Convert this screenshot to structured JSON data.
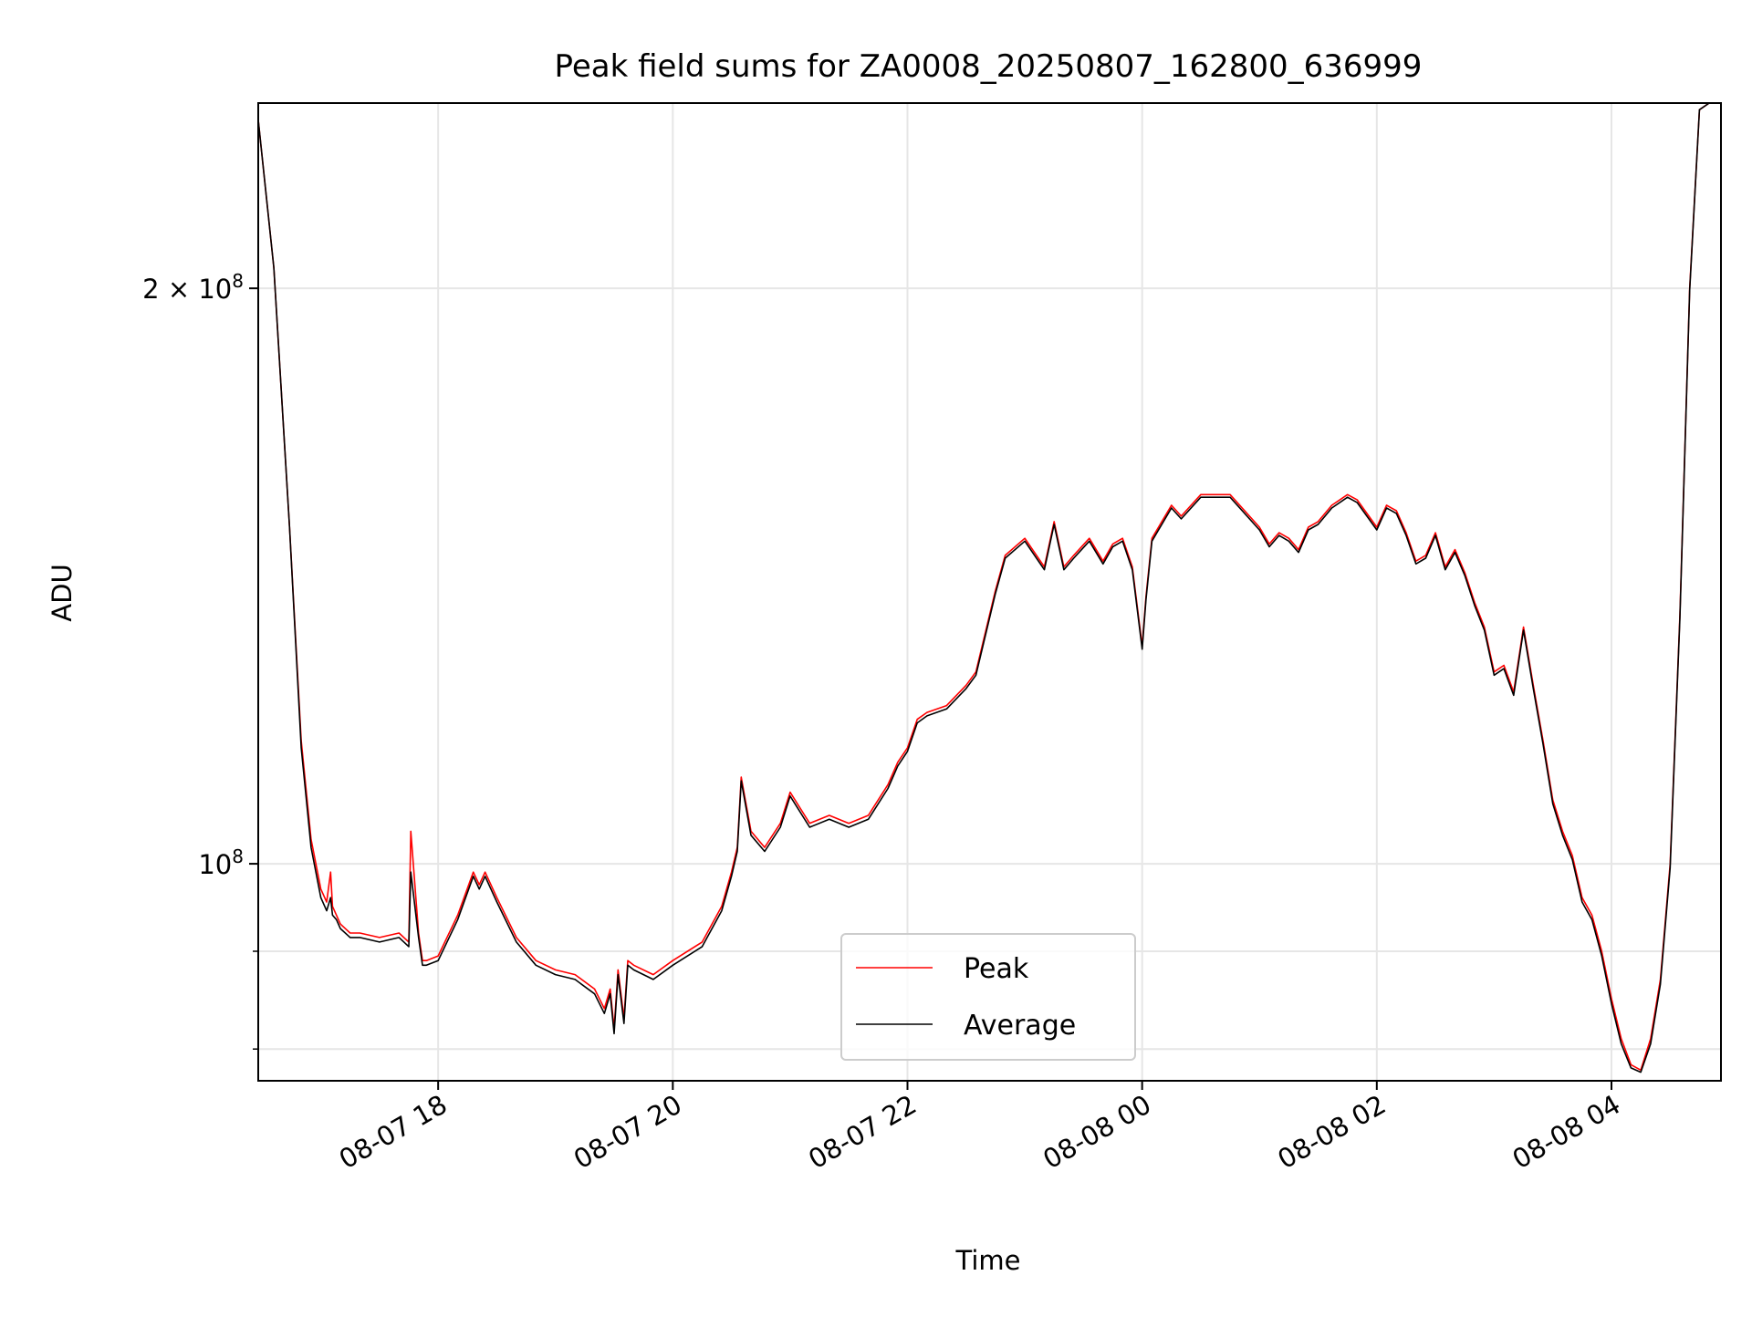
{
  "chart_data": {
    "type": "line",
    "title": "Peak field sums for ZA0008_20250807_162800_636999",
    "xlabel": "Time",
    "ylabel": "ADU",
    "x_unit": "datetime",
    "xlim": [
      "2025-08-07 16:28",
      "2025-08-08 04:56"
    ],
    "ylim": [
      77000000,
      250000000
    ],
    "yscale": "log",
    "grid": true,
    "legend": {
      "placement": "lower center"
    },
    "x_ticks": [
      {
        "value": "2025-08-07 18:00",
        "label": "08-07 18"
      },
      {
        "value": "2025-08-07 20:00",
        "label": "08-07 20"
      },
      {
        "value": "2025-08-07 22:00",
        "label": "08-07 22"
      },
      {
        "value": "2025-08-08 00:00",
        "label": "08-08 00"
      },
      {
        "value": "2025-08-08 02:00",
        "label": "08-08 02"
      },
      {
        "value": "2025-08-08 04:00",
        "label": "08-08 04"
      }
    ],
    "y_ticks": [
      {
        "value": 100000000,
        "label_base": "10",
        "label_exp": "8",
        "label_coef": ""
      },
      {
        "value": 200000000,
        "label_base": "10",
        "label_exp": "8",
        "label_coef": "2 × "
      }
    ],
    "y_minor_ticks": [
      80000000,
      90000000
    ],
    "series": [
      {
        "name": "Peak",
        "color": "#ff0000",
        "x": [
          "2025-08-07 16:28",
          "2025-08-07 16:36",
          "2025-08-07 16:44",
          "2025-08-07 16:50",
          "2025-08-07 16:55",
          "2025-08-07 17:00",
          "2025-08-07 17:03",
          "2025-08-07 17:05",
          "2025-08-07 17:06",
          "2025-08-07 17:08",
          "2025-08-07 17:10",
          "2025-08-07 17:15",
          "2025-08-07 17:20",
          "2025-08-07 17:30",
          "2025-08-07 17:40",
          "2025-08-07 17:45",
          "2025-08-07 17:46",
          "2025-08-07 17:50",
          "2025-08-07 17:52",
          "2025-08-07 17:54",
          "2025-08-07 18:00",
          "2025-08-07 18:10",
          "2025-08-07 18:18",
          "2025-08-07 18:21",
          "2025-08-07 18:24",
          "2025-08-07 18:30",
          "2025-08-07 18:40",
          "2025-08-07 18:50",
          "2025-08-07 19:00",
          "2025-08-07 19:10",
          "2025-08-07 19:20",
          "2025-08-07 19:25",
          "2025-08-07 19:28",
          "2025-08-07 19:30",
          "2025-08-07 19:32",
          "2025-08-07 19:35",
          "2025-08-07 19:37",
          "2025-08-07 19:40",
          "2025-08-07 19:50",
          "2025-08-07 20:00",
          "2025-08-07 20:15",
          "2025-08-07 20:25",
          "2025-08-07 20:30",
          "2025-08-07 20:33",
          "2025-08-07 20:35",
          "2025-08-07 20:40",
          "2025-08-07 20:47",
          "2025-08-07 20:55",
          "2025-08-07 21:00",
          "2025-08-07 21:10",
          "2025-08-07 21:20",
          "2025-08-07 21:30",
          "2025-08-07 21:40",
          "2025-08-07 21:50",
          "2025-08-07 21:55",
          "2025-08-07 22:00",
          "2025-08-07 22:05",
          "2025-08-07 22:10",
          "2025-08-07 22:20",
          "2025-08-07 22:30",
          "2025-08-07 22:35",
          "2025-08-07 22:45",
          "2025-08-07 22:50",
          "2025-08-07 23:00",
          "2025-08-07 23:10",
          "2025-08-07 23:15",
          "2025-08-07 23:20",
          "2025-08-07 23:25",
          "2025-08-07 23:33",
          "2025-08-07 23:40",
          "2025-08-07 23:45",
          "2025-08-07 23:50",
          "2025-08-07 23:55",
          "2025-08-08 00:00",
          "2025-08-08 00:02",
          "2025-08-08 00:05",
          "2025-08-08 00:15",
          "2025-08-08 00:20",
          "2025-08-08 00:30",
          "2025-08-08 00:45",
          "2025-08-08 01:00",
          "2025-08-08 01:05",
          "2025-08-08 01:10",
          "2025-08-08 01:15",
          "2025-08-08 01:20",
          "2025-08-08 01:25",
          "2025-08-08 01:30",
          "2025-08-08 01:37",
          "2025-08-08 01:45",
          "2025-08-08 01:50",
          "2025-08-08 02:00",
          "2025-08-08 02:05",
          "2025-08-08 02:10",
          "2025-08-08 02:15",
          "2025-08-08 02:20",
          "2025-08-08 02:25",
          "2025-08-08 02:30",
          "2025-08-08 02:35",
          "2025-08-08 02:40",
          "2025-08-08 02:45",
          "2025-08-08 02:50",
          "2025-08-08 02:55",
          "2025-08-08 03:00",
          "2025-08-08 03:05",
          "2025-08-08 03:10",
          "2025-08-08 03:15",
          "2025-08-08 03:20",
          "2025-08-08 03:25",
          "2025-08-08 03:30",
          "2025-08-08 03:35",
          "2025-08-08 03:40",
          "2025-08-08 03:45",
          "2025-08-08 03:50",
          "2025-08-08 03:55",
          "2025-08-08 04:00",
          "2025-08-08 04:05",
          "2025-08-08 04:10",
          "2025-08-08 04:15",
          "2025-08-08 04:20",
          "2025-08-08 04:25",
          "2025-08-08 04:30",
          "2025-08-08 04:35",
          "2025-08-08 04:40",
          "2025-08-08 04:45",
          "2025-08-08 04:50"
        ],
        "y": [
          245000000,
          205000000,
          150000000,
          116000000,
          103000000,
          97000000,
          95500000,
          99000000,
          95000000,
          94000000,
          93000000,
          92000000,
          92000000,
          91500000,
          92000000,
          91000000,
          104000000,
          92000000,
          89000000,
          89000000,
          89500000,
          94000000,
          99000000,
          97500000,
          99000000,
          96000000,
          91500000,
          89000000,
          88000000,
          87500000,
          86000000,
          84000000,
          86000000,
          82000000,
          88000000,
          83000000,
          89000000,
          88500000,
          87500000,
          89000000,
          91000000,
          95000000,
          99000000,
          102000000,
          111000000,
          104000000,
          102000000,
          105000000,
          109000000,
          105000000,
          106000000,
          105000000,
          106000000,
          110000000,
          113000000,
          115000000,
          119000000,
          120000000,
          121000000,
          124000000,
          126000000,
          139000000,
          145000000,
          148000000,
          143000000,
          151000000,
          143000000,
          145000000,
          148000000,
          144000000,
          147000000,
          148000000,
          143000000,
          130000000,
          138000000,
          148000000,
          154000000,
          152000000,
          156000000,
          156000000,
          150000000,
          147000000,
          149000000,
          148000000,
          146000000,
          150000000,
          151000000,
          154000000,
          156000000,
          155000000,
          150000000,
          154000000,
          153000000,
          149000000,
          144000000,
          145000000,
          149000000,
          143000000,
          146000000,
          142000000,
          137000000,
          133000000,
          126000000,
          127000000,
          123000000,
          133000000,
          124000000,
          116000000,
          108000000,
          104000000,
          101000000,
          96000000,
          94000000,
          90000000,
          85000000,
          81000000,
          78500000,
          78000000,
          81000000,
          87000000,
          100000000,
          135000000,
          200000000,
          248000000,
          250000000
        ]
      },
      {
        "name": "Average",
        "color": "#000000",
        "x": [
          "2025-08-07 16:28",
          "2025-08-07 16:36",
          "2025-08-07 16:44",
          "2025-08-07 16:50",
          "2025-08-07 16:55",
          "2025-08-07 17:00",
          "2025-08-07 17:03",
          "2025-08-07 17:05",
          "2025-08-07 17:06",
          "2025-08-07 17:08",
          "2025-08-07 17:10",
          "2025-08-07 17:15",
          "2025-08-07 17:20",
          "2025-08-07 17:30",
          "2025-08-07 17:40",
          "2025-08-07 17:45",
          "2025-08-07 17:46",
          "2025-08-07 17:50",
          "2025-08-07 17:52",
          "2025-08-07 17:54",
          "2025-08-07 18:00",
          "2025-08-07 18:10",
          "2025-08-07 18:18",
          "2025-08-07 18:21",
          "2025-08-07 18:24",
          "2025-08-07 18:30",
          "2025-08-07 18:40",
          "2025-08-07 18:50",
          "2025-08-07 19:00",
          "2025-08-07 19:10",
          "2025-08-07 19:20",
          "2025-08-07 19:25",
          "2025-08-07 19:28",
          "2025-08-07 19:30",
          "2025-08-07 19:32",
          "2025-08-07 19:35",
          "2025-08-07 19:37",
          "2025-08-07 19:40",
          "2025-08-07 19:50",
          "2025-08-07 20:00",
          "2025-08-07 20:15",
          "2025-08-07 20:25",
          "2025-08-07 20:30",
          "2025-08-07 20:33",
          "2025-08-07 20:35",
          "2025-08-07 20:40",
          "2025-08-07 20:47",
          "2025-08-07 20:55",
          "2025-08-07 21:00",
          "2025-08-07 21:10",
          "2025-08-07 21:20",
          "2025-08-07 21:30",
          "2025-08-07 21:40",
          "2025-08-07 21:50",
          "2025-08-07 21:55",
          "2025-08-07 22:00",
          "2025-08-07 22:05",
          "2025-08-07 22:10",
          "2025-08-07 22:20",
          "2025-08-07 22:30",
          "2025-08-07 22:35",
          "2025-08-07 22:45",
          "2025-08-07 22:50",
          "2025-08-07 23:00",
          "2025-08-07 23:10",
          "2025-08-07 23:15",
          "2025-08-07 23:20",
          "2025-08-07 23:25",
          "2025-08-07 23:33",
          "2025-08-07 23:40",
          "2025-08-07 23:45",
          "2025-08-07 23:50",
          "2025-08-07 23:55",
          "2025-08-08 00:00",
          "2025-08-08 00:02",
          "2025-08-08 00:05",
          "2025-08-08 00:15",
          "2025-08-08 00:20",
          "2025-08-08 00:30",
          "2025-08-08 00:45",
          "2025-08-08 01:00",
          "2025-08-08 01:05",
          "2025-08-08 01:10",
          "2025-08-08 01:15",
          "2025-08-08 01:20",
          "2025-08-08 01:25",
          "2025-08-08 01:30",
          "2025-08-08 01:37",
          "2025-08-08 01:45",
          "2025-08-08 01:50",
          "2025-08-08 02:00",
          "2025-08-08 02:05",
          "2025-08-08 02:10",
          "2025-08-08 02:15",
          "2025-08-08 02:20",
          "2025-08-08 02:25",
          "2025-08-08 02:30",
          "2025-08-08 02:35",
          "2025-08-08 02:40",
          "2025-08-08 02:45",
          "2025-08-08 02:50",
          "2025-08-08 02:55",
          "2025-08-08 03:00",
          "2025-08-08 03:05",
          "2025-08-08 03:10",
          "2025-08-08 03:15",
          "2025-08-08 03:20",
          "2025-08-08 03:25",
          "2025-08-08 03:30",
          "2025-08-08 03:35",
          "2025-08-08 03:40",
          "2025-08-08 03:45",
          "2025-08-08 03:50",
          "2025-08-08 03:55",
          "2025-08-08 04:00",
          "2025-08-08 04:05",
          "2025-08-08 04:10",
          "2025-08-08 04:15",
          "2025-08-08 04:20",
          "2025-08-08 04:25",
          "2025-08-08 04:30",
          "2025-08-08 04:35",
          "2025-08-08 04:40",
          "2025-08-08 04:45",
          "2025-08-08 04:50"
        ],
        "y": [
          245000000,
          205000000,
          150000000,
          115000000,
          102000000,
          96000000,
          94500000,
          96000000,
          94000000,
          93500000,
          92500000,
          91500000,
          91500000,
          91000000,
          91500000,
          90500000,
          99000000,
          91500000,
          88500000,
          88500000,
          89000000,
          93500000,
          98500000,
          97000000,
          98500000,
          95500000,
          91000000,
          88500000,
          87500000,
          87000000,
          85500000,
          83500000,
          85500000,
          81500000,
          87500000,
          82500000,
          88500000,
          88000000,
          87000000,
          88500000,
          90500000,
          94500000,
          98500000,
          101500000,
          110500000,
          103500000,
          101500000,
          104500000,
          108500000,
          104500000,
          105500000,
          104500000,
          105500000,
          109500000,
          112500000,
          114500000,
          118500000,
          119500000,
          120500000,
          123500000,
          125500000,
          138500000,
          144500000,
          147500000,
          142500000,
          150500000,
          142500000,
          144500000,
          147500000,
          143500000,
          146500000,
          147500000,
          142500000,
          129500000,
          137500000,
          147500000,
          153500000,
          151500000,
          155500000,
          155500000,
          149500000,
          146500000,
          148500000,
          147500000,
          145500000,
          149500000,
          150500000,
          153500000,
          155500000,
          154500000,
          149500000,
          153500000,
          152500000,
          148500000,
          143500000,
          144500000,
          148500000,
          142500000,
          145500000,
          141500000,
          136500000,
          132500000,
          125500000,
          126500000,
          122500000,
          132500000,
          123500000,
          115500000,
          107500000,
          103500000,
          100500000,
          95500000,
          93500000,
          89500000,
          84500000,
          80500000,
          78200000,
          77800000,
          80500000,
          86500000,
          99500000,
          134500000,
          199500000,
          248000000,
          250000000
        ]
      }
    ]
  }
}
